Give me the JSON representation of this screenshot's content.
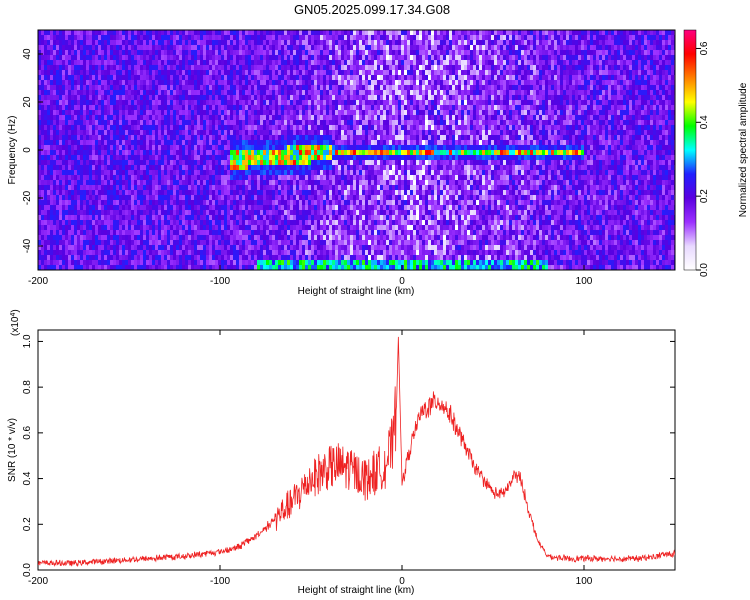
{
  "title": "GN05.2025.099.17.34.G08",
  "colors": {
    "snr_line": "#ee2222",
    "colormap": [
      "#ffffff",
      "#e8d8ff",
      "#9b30ff",
      "#5a00e0",
      "#2020ff",
      "#00ffff",
      "#00ff00",
      "#ffff00",
      "#ff8000",
      "#ff0000",
      "#ff0080"
    ]
  },
  "chart_data": [
    {
      "type": "heatmap",
      "xlabel": "Height of straight line (km)",
      "ylabel": "Frequency (Hz)",
      "xlim": [
        -200,
        150
      ],
      "ylim": [
        -50,
        50
      ],
      "xticks": [
        "-200",
        "-100",
        "0",
        "100"
      ],
      "yticks": [
        "40",
        "20",
        "0",
        "-20",
        "-40"
      ],
      "colorbar": {
        "label": "Normalized spectral amplitude",
        "range": [
          0.0,
          0.65
        ],
        "ticks": [
          "0.0",
          "0.2",
          "0.4",
          "0.6"
        ]
      },
      "features": [
        {
          "description": "horizontal signal band near 0 Hz",
          "x_range": [
            -95,
            100
          ],
          "frequency": 0
        },
        {
          "description": "signal band at bottom edge",
          "x_range": [
            -80,
            80
          ],
          "frequency": -49
        }
      ]
    },
    {
      "type": "line",
      "xlabel": "Height of straight line (km)",
      "ylabel": "SNR (10 * v/v)",
      "y_multiplier": "(x10",
      "y_multiplier_exp": "4",
      "y_multiplier_close": ")",
      "xlim": [
        -200,
        150
      ],
      "ylim": [
        0,
        1.05
      ],
      "xticks": [
        "-200",
        "-100",
        "0",
        "100"
      ],
      "yticks": [
        "0.0",
        "0.2",
        "0.4",
        "0.6",
        "0.8",
        "1.0"
      ],
      "series": [
        {
          "x": [
            -200,
            -180,
            -160,
            -140,
            -120,
            -100,
            -90,
            -80,
            -70,
            -60,
            -50,
            -40,
            -30,
            -20,
            -10,
            -5,
            -3,
            -2,
            0,
            5,
            10,
            15,
            20,
            25,
            30,
            40,
            50,
            55,
            60,
            62,
            65,
            70,
            75,
            80,
            90,
            100,
            110,
            120,
            130,
            140,
            145,
            150
          ],
          "y": [
            0.03,
            0.03,
            0.04,
            0.05,
            0.06,
            0.08,
            0.1,
            0.15,
            0.22,
            0.3,
            0.4,
            0.45,
            0.45,
            0.4,
            0.45,
            0.55,
            0.72,
            1.02,
            0.38,
            0.55,
            0.68,
            0.72,
            0.74,
            0.7,
            0.62,
            0.45,
            0.34,
            0.33,
            0.38,
            0.42,
            0.4,
            0.25,
            0.12,
            0.06,
            0.05,
            0.05,
            0.05,
            0.05,
            0.05,
            0.06,
            0.07,
            0.07
          ]
        }
      ]
    }
  ]
}
